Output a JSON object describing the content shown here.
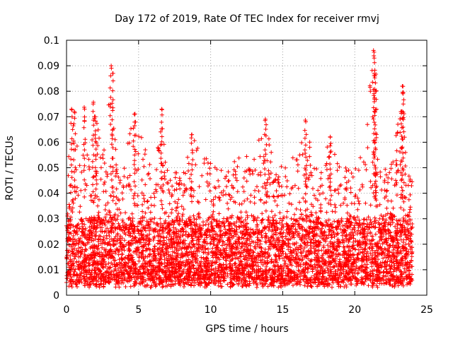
{
  "chart_data": {
    "type": "scatter",
    "title": "Day 172 of 2019, Rate Of TEC Index for receiver rmvj",
    "xlabel": "GPS time / hours",
    "ylabel": "ROTI / TECUs",
    "xlim": [
      0,
      25
    ],
    "ylim": [
      0,
      0.1
    ],
    "xticks": [
      0,
      5,
      10,
      15,
      20,
      25
    ],
    "xtick_labels": [
      "0",
      "5",
      "10",
      "15",
      "20",
      "25"
    ],
    "yticks": [
      0,
      0.01,
      0.02,
      0.03,
      0.04,
      0.05,
      0.06,
      0.07,
      0.08,
      0.09,
      0.1
    ],
    "ytick_labels": [
      "0",
      "0.01",
      "0.02",
      "0.03",
      "0.04",
      "0.05",
      "0.06",
      "0.07",
      "0.08",
      "0.09",
      "0.1"
    ],
    "grid": true,
    "marker": "+",
    "color": "#ff0000",
    "series": [
      {
        "name": "ROTI",
        "x_range": [
          0,
          24
        ],
        "baseline_band": [
          0.005,
          0.03
        ],
        "envelope": [
          {
            "x": 0.0,
            "y": 0.045
          },
          {
            "x": 0.3,
            "y": 0.066
          },
          {
            "x": 0.5,
            "y": 0.073
          },
          {
            "x": 1.0,
            "y": 0.055
          },
          {
            "x": 1.3,
            "y": 0.073
          },
          {
            "x": 1.5,
            "y": 0.052
          },
          {
            "x": 1.9,
            "y": 0.075
          },
          {
            "x": 2.5,
            "y": 0.055
          },
          {
            "x": 3.1,
            "y": 0.09
          },
          {
            "x": 3.5,
            "y": 0.05
          },
          {
            "x": 4.0,
            "y": 0.055
          },
          {
            "x": 4.7,
            "y": 0.071
          },
          {
            "x": 5.5,
            "y": 0.058
          },
          {
            "x": 6.0,
            "y": 0.052
          },
          {
            "x": 6.6,
            "y": 0.073
          },
          {
            "x": 7.0,
            "y": 0.05
          },
          {
            "x": 8.0,
            "y": 0.048
          },
          {
            "x": 8.7,
            "y": 0.063
          },
          {
            "x": 9.3,
            "y": 0.06
          },
          {
            "x": 10.0,
            "y": 0.052
          },
          {
            "x": 11.0,
            "y": 0.05
          },
          {
            "x": 12.0,
            "y": 0.056
          },
          {
            "x": 13.0,
            "y": 0.055
          },
          {
            "x": 13.8,
            "y": 0.069
          },
          {
            "x": 14.5,
            "y": 0.05
          },
          {
            "x": 15.5,
            "y": 0.052
          },
          {
            "x": 16.6,
            "y": 0.068
          },
          {
            "x": 17.5,
            "y": 0.05
          },
          {
            "x": 18.3,
            "y": 0.062
          },
          {
            "x": 19.0,
            "y": 0.052
          },
          {
            "x": 20.0,
            "y": 0.05
          },
          {
            "x": 20.5,
            "y": 0.06
          },
          {
            "x": 21.3,
            "y": 0.096
          },
          {
            "x": 21.7,
            "y": 0.05
          },
          {
            "x": 22.5,
            "y": 0.05
          },
          {
            "x": 23.3,
            "y": 0.08
          },
          {
            "x": 24.0,
            "y": 0.045
          }
        ],
        "peaks": [
          {
            "x": 0.35,
            "y": 0.073
          },
          {
            "x": 0.55,
            "y": 0.072
          },
          {
            "x": 1.25,
            "y": 0.073
          },
          {
            "x": 1.85,
            "y": 0.075
          },
          {
            "x": 2.0,
            "y": 0.07
          },
          {
            "x": 3.1,
            "y": 0.09
          },
          {
            "x": 3.2,
            "y": 0.087
          },
          {
            "x": 4.7,
            "y": 0.071
          },
          {
            "x": 6.6,
            "y": 0.073
          },
          {
            "x": 8.7,
            "y": 0.063
          },
          {
            "x": 13.8,
            "y": 0.069
          },
          {
            "x": 16.6,
            "y": 0.068
          },
          {
            "x": 18.3,
            "y": 0.062
          },
          {
            "x": 21.3,
            "y": 0.096
          },
          {
            "x": 21.35,
            "y": 0.093
          },
          {
            "x": 21.4,
            "y": 0.086
          },
          {
            "x": 21.45,
            "y": 0.08
          },
          {
            "x": 23.3,
            "y": 0.082
          },
          {
            "x": 23.35,
            "y": 0.079
          },
          {
            "x": 23.2,
            "y": 0.072
          }
        ]
      }
    ]
  }
}
